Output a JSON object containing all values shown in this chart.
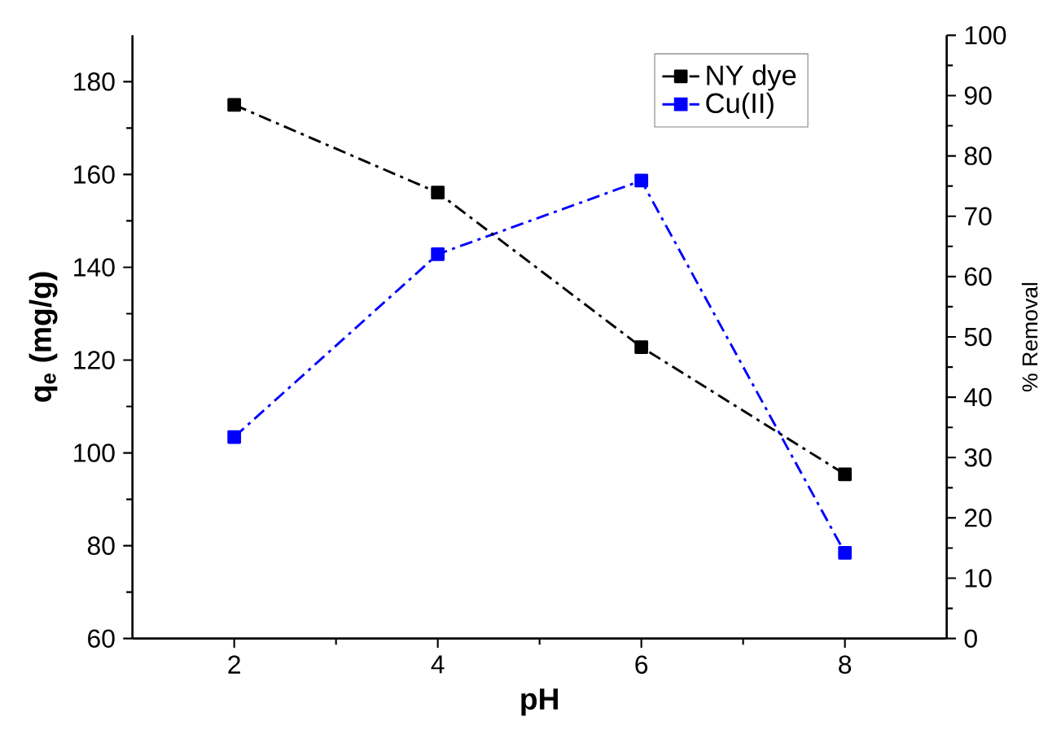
{
  "chart_data": {
    "type": "line",
    "xlabel": "pH",
    "ylabel": "q$_{e}$ (mg/g)",
    "y2label": "% Removal",
    "x": [
      2,
      4,
      6,
      8
    ],
    "xlim": [
      1,
      9
    ],
    "xticks": [
      2,
      4,
      6,
      8
    ],
    "ylim": [
      60,
      190
    ],
    "yticks": [
      60,
      80,
      100,
      120,
      140,
      160,
      180
    ],
    "y2lim": [
      0,
      100
    ],
    "y2ticks": [
      0,
      10,
      20,
      30,
      40,
      50,
      60,
      70,
      80,
      90,
      100
    ],
    "marker": "square",
    "line_style": "dashdot",
    "legend": "top right",
    "grid": false,
    "series": [
      {
        "name": "NY dye",
        "color": "#000000",
        "values": [
          175.0,
          156.1,
          122.8,
          95.4
        ]
      },
      {
        "name": "Cu(II)",
        "color": "#0000ff",
        "axis": "y2",
        "values": [
          33.4,
          63.7,
          75.9,
          14.2
        ]
      }
    ]
  }
}
